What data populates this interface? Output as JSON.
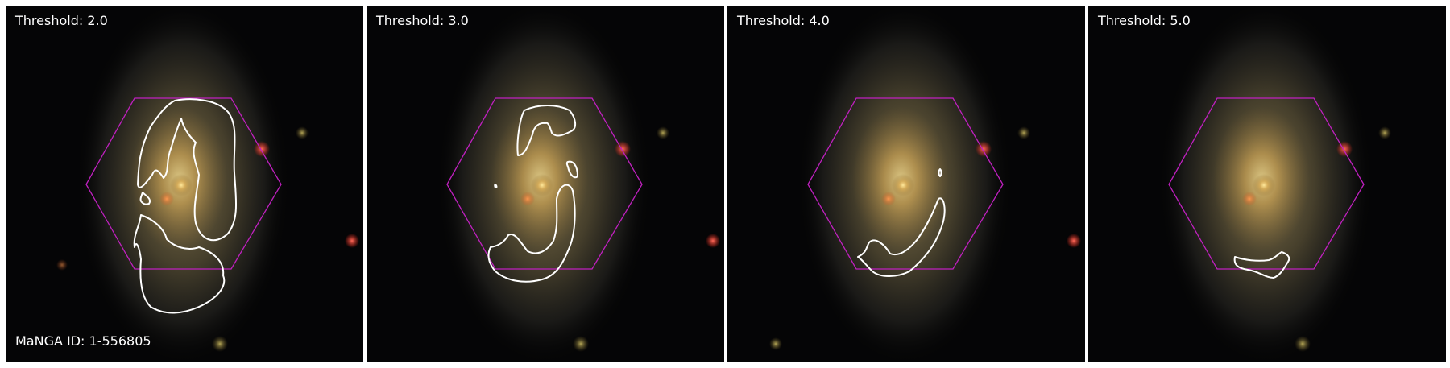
{
  "panels": [
    {
      "threshold_label": "Threshold: 2.0",
      "show_id": true
    },
    {
      "threshold_label": "Threshold: 3.0",
      "show_id": false
    },
    {
      "threshold_label": "Threshold: 4.0",
      "show_id": false
    },
    {
      "threshold_label": "Threshold: 5.0",
      "show_id": false
    }
  ],
  "manga_id_label": "MaNGA ID: 1-556805",
  "colors": {
    "hexagon": "#c020c0",
    "contour": "#ffffff",
    "galaxy_core": "#ffe89a"
  }
}
